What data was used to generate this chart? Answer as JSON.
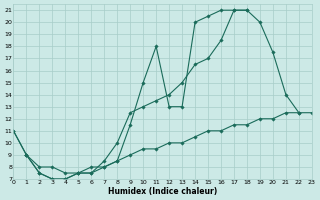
{
  "xlabel": "Humidex (Indice chaleur)",
  "bg_color": "#cce9e6",
  "line_color": "#1a6b5a",
  "grid_color": "#a8cdc9",
  "xlim": [
    0,
    23
  ],
  "ylim": [
    7,
    21.5
  ],
  "xticks": [
    0,
    1,
    2,
    3,
    4,
    5,
    6,
    7,
    8,
    9,
    10,
    11,
    12,
    13,
    14,
    15,
    16,
    17,
    18,
    19,
    20,
    21,
    22,
    23
  ],
  "yticks": [
    7,
    8,
    9,
    10,
    11,
    12,
    13,
    14,
    15,
    16,
    17,
    18,
    19,
    20,
    21
  ],
  "line1_x": [
    0,
    1,
    2,
    3,
    4,
    5,
    6,
    7,
    8,
    9,
    10,
    11,
    12,
    13,
    14,
    15,
    16,
    17,
    18,
    19,
    20,
    21,
    22
  ],
  "line1_y": [
    11,
    9,
    7.5,
    7,
    7,
    7.5,
    7.5,
    8,
    8.5,
    11.5,
    15,
    18,
    13,
    13,
    20,
    20.5,
    21,
    21,
    21,
    20,
    17.5,
    14,
    12.5
  ],
  "line2_x": [
    0,
    1,
    2,
    3,
    4,
    5,
    6,
    7,
    8,
    9,
    10,
    11,
    12,
    13,
    14,
    15,
    16,
    17,
    18
  ],
  "line2_y": [
    11,
    9,
    7.5,
    7,
    7,
    7.5,
    7.5,
    8.5,
    10,
    12.5,
    13,
    13.5,
    14,
    15,
    16.5,
    17,
    18.5,
    21,
    21
  ],
  "line3_x": [
    1,
    2,
    3,
    4,
    5,
    6,
    7,
    8,
    9,
    10,
    11,
    12,
    13,
    14,
    15,
    16,
    17,
    18,
    19,
    20,
    21,
    22,
    23
  ],
  "line3_y": [
    9,
    8,
    8,
    7.5,
    7.5,
    8,
    8,
    8.5,
    9,
    9.5,
    9.5,
    10,
    10,
    10.5,
    11,
    11,
    11.5,
    11.5,
    12,
    12,
    12.5,
    12.5,
    12.5
  ]
}
